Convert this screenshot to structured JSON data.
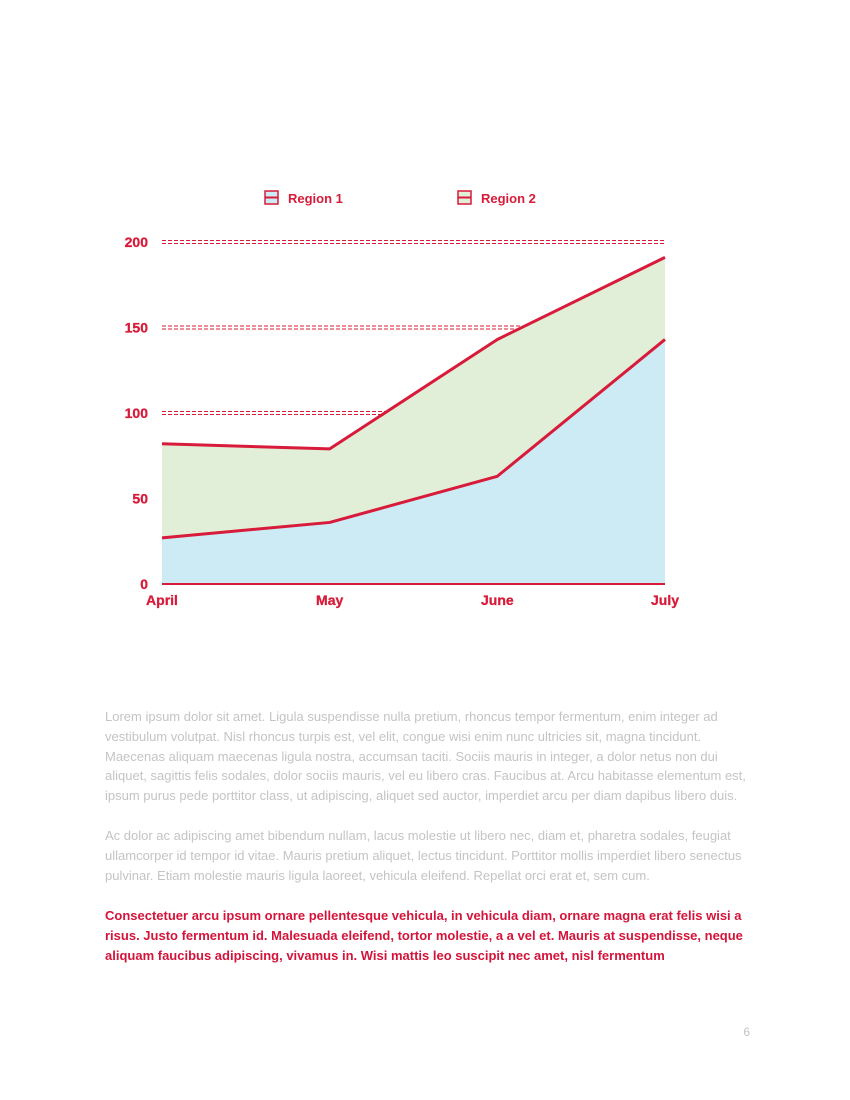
{
  "chart_data": {
    "type": "area",
    "stacked": true,
    "categories": [
      "April",
      "May",
      "June",
      "July"
    ],
    "series": [
      {
        "name": "Region 1",
        "values": [
          27,
          36,
          63,
          143
        ],
        "color": "#cdebf5"
      },
      {
        "name": "Region 2",
        "values": [
          55,
          43,
          80,
          48
        ],
        "color": "#e1efd9"
      }
    ],
    "ylim": [
      0,
      200
    ],
    "yticks": [
      "0",
      "50",
      "100",
      "150",
      "200"
    ],
    "line_color": "#d81b3a",
    "grid": true,
    "legend": "top"
  },
  "paragraphs": [
    "Lorem ipsum dolor sit amet. Ligula suspendisse nulla pretium, rhoncus tempor fermentum, enim integer ad vestibulum volutpat. Nisl rhoncus turpis est, vel elit, congue wisi enim nunc ultricies sit, magna tincidunt. Maecenas aliquam maecenas ligula nostra, accumsan taciti. Sociis mauris in integer, a dolor netus non dui aliquet, sagittis felis sodales, dolor sociis mauris, vel eu libero cras. Faucibus at. Arcu habitasse elementum est, ipsum purus pede porttitor class, ut adipiscing, aliquet sed auctor, imperdiet arcu per diam dapibus libero duis.",
    "Ac dolor ac adipiscing amet bibendum nullam, lacus molestie ut libero nec, diam et, pharetra sodales, feugiat ullamcorper id tempor id vitae. Mauris pretium aliquet, lectus tincidunt. Porttitor mollis imperdiet libero senectus pulvinar. Etiam molestie mauris ligula laoreet, vehicula eleifend. Repellat orci erat et, sem cum.",
    "Consectetuer arcu ipsum ornare pellentesque vehicula, in vehicula diam, ornare magna erat felis wisi a risus. Justo fermentum id. Malesuada eleifend, tortor molestie, a a vel et. Mauris at suspendisse, neque aliquam faucibus adipiscing, vivamus in. Wisi mattis leo suscipit nec amet, nisl fermentum"
  ],
  "page_number": "6"
}
